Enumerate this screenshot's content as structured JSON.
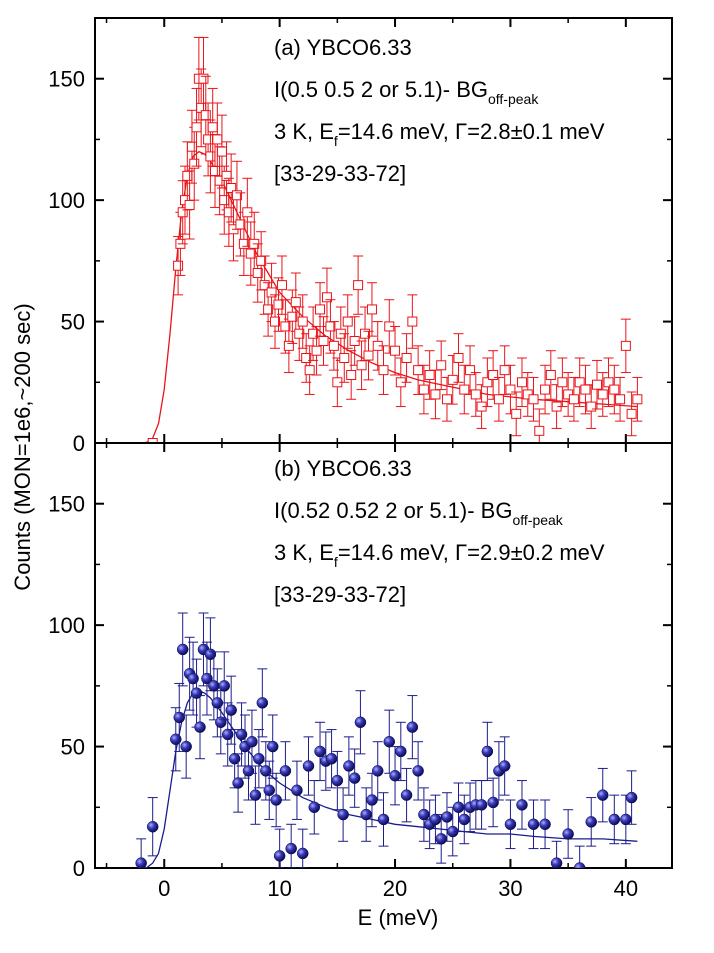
{
  "chart_data": [
    {
      "type": "scatter",
      "panel": "a",
      "annotations": {
        "line1": "(a) YBCO6.33",
        "line2_main": "I(0.5 0.5 2 or 5.1)- BG",
        "line2_sub": "off-peak",
        "line3_pre": "3 K, E",
        "line3_sub": "f",
        "line3_post": "=14.6 meV, Γ=2.8±0.1 meV",
        "line4": "[33-29-33-72]"
      },
      "xlim": [
        -6,
        44
      ],
      "ylim": [
        0,
        175
      ],
      "yticks": [
        0,
        50,
        100,
        150
      ],
      "marker": "open-square",
      "color": "#e8141a",
      "points": [
        [
          -1.0,
          0,
          0
        ],
        [
          1.2,
          73,
          12
        ],
        [
          1.4,
          82,
          13
        ],
        [
          1.6,
          95,
          13
        ],
        [
          1.8,
          100,
          14
        ],
        [
          2.0,
          110,
          14
        ],
        [
          2.2,
          98,
          14
        ],
        [
          2.4,
          122,
          15
        ],
        [
          2.6,
          115,
          15
        ],
        [
          2.8,
          130,
          16
        ],
        [
          3.0,
          150,
          17
        ],
        [
          3.2,
          138,
          16
        ],
        [
          3.4,
          150,
          17
        ],
        [
          3.6,
          135,
          16
        ],
        [
          3.8,
          125,
          15
        ],
        [
          4.0,
          118,
          15
        ],
        [
          4.2,
          130,
          16
        ],
        [
          4.4,
          112,
          15
        ],
        [
          4.6,
          125,
          15
        ],
        [
          4.8,
          108,
          14
        ],
        [
          5.0,
          120,
          15
        ],
        [
          5.2,
          100,
          14
        ],
        [
          5.4,
          110,
          14
        ],
        [
          5.6,
          95,
          14
        ],
        [
          5.8,
          105,
          14
        ],
        [
          6.0,
          88,
          13
        ],
        [
          6.3,
          102,
          14
        ],
        [
          6.6,
          90,
          13
        ],
        [
          6.9,
          82,
          13
        ],
        [
          7.2,
          95,
          14
        ],
        [
          7.5,
          78,
          13
        ],
        [
          7.8,
          82,
          13
        ],
        [
          8.1,
          70,
          12
        ],
        [
          8.4,
          75,
          12
        ],
        [
          8.7,
          65,
          12
        ],
        [
          9.0,
          55,
          11
        ],
        [
          9.3,
          62,
          12
        ],
        [
          9.6,
          50,
          11
        ],
        [
          9.9,
          57,
          11
        ],
        [
          10.2,
          65,
          12
        ],
        [
          10.5,
          48,
          11
        ],
        [
          10.8,
          40,
          11
        ],
        [
          11.1,
          52,
          11
        ],
        [
          11.4,
          58,
          12
        ],
        [
          11.7,
          45,
          11
        ],
        [
          12.0,
          50,
          11
        ],
        [
          12.3,
          35,
          10
        ],
        [
          12.6,
          30,
          10
        ],
        [
          12.9,
          45,
          11
        ],
        [
          13.2,
          38,
          10
        ],
        [
          13.5,
          55,
          11
        ],
        [
          13.8,
          42,
          10
        ],
        [
          14.1,
          60,
          12
        ],
        [
          14.4,
          48,
          11
        ],
        [
          14.7,
          40,
          10
        ],
        [
          15.0,
          25,
          10
        ],
        [
          15.3,
          45,
          11
        ],
        [
          15.6,
          35,
          10
        ],
        [
          15.9,
          50,
          11
        ],
        [
          16.2,
          28,
          10
        ],
        [
          16.5,
          42,
          10
        ],
        [
          16.8,
          65,
          12
        ],
        [
          17.1,
          32,
          10
        ],
        [
          17.4,
          45,
          11
        ],
        [
          17.7,
          36,
          10
        ],
        [
          18.0,
          55,
          11
        ],
        [
          18.5,
          40,
          10
        ],
        [
          19.0,
          30,
          10
        ],
        [
          19.5,
          48,
          11
        ],
        [
          20.0,
          38,
          10
        ],
        [
          20.5,
          25,
          10
        ],
        [
          21.0,
          35,
          10
        ],
        [
          21.5,
          50,
          11
        ],
        [
          22.0,
          30,
          10
        ],
        [
          22.5,
          22,
          10
        ],
        [
          23.0,
          28,
          10
        ],
        [
          23.5,
          20,
          10
        ],
        [
          24.0,
          32,
          10
        ],
        [
          24.5,
          18,
          9
        ],
        [
          25.0,
          26,
          10
        ],
        [
          25.5,
          35,
          10
        ],
        [
          26.0,
          22,
          10
        ],
        [
          26.5,
          30,
          10
        ],
        [
          27.0,
          20,
          9
        ],
        [
          27.5,
          15,
          9
        ],
        [
          28.0,
          25,
          10
        ],
        [
          28.5,
          28,
          10
        ],
        [
          29.0,
          18,
          9
        ],
        [
          29.5,
          30,
          10
        ],
        [
          30.0,
          22,
          10
        ],
        [
          30.5,
          12,
          9
        ],
        [
          31.0,
          25,
          10
        ],
        [
          31.5,
          20,
          9
        ],
        [
          32.0,
          18,
          9
        ],
        [
          32.5,
          5,
          9
        ],
        [
          33.0,
          22,
          10
        ],
        [
          33.5,
          28,
          10
        ],
        [
          34.0,
          15,
          9
        ],
        [
          34.5,
          25,
          10
        ],
        [
          35.0,
          20,
          9
        ],
        [
          35.5,
          18,
          9
        ],
        [
          36.0,
          25,
          10
        ],
        [
          36.5,
          22,
          10
        ],
        [
          37.0,
          15,
          9
        ],
        [
          37.5,
          24,
          10
        ],
        [
          38.0,
          20,
          9
        ],
        [
          38.5,
          25,
          10
        ],
        [
          39.0,
          22,
          10
        ],
        [
          39.5,
          18,
          9
        ],
        [
          40.0,
          40,
          11
        ],
        [
          40.5,
          12,
          9
        ],
        [
          41.0,
          18,
          9
        ]
      ],
      "fit": [
        [
          -2.0,
          0
        ],
        [
          -1.5,
          0.3
        ],
        [
          -1.0,
          2
        ],
        [
          -0.5,
          8
        ],
        [
          0.0,
          22
        ],
        [
          0.5,
          45
        ],
        [
          1.0,
          72
        ],
        [
          1.5,
          95
        ],
        [
          2.0,
          110
        ],
        [
          2.5,
          118
        ],
        [
          3.0,
          120
        ],
        [
          3.5,
          119
        ],
        [
          4.0,
          116
        ],
        [
          5.0,
          108
        ],
        [
          6.0,
          98
        ],
        [
          7.0,
          88
        ],
        [
          8.0,
          78
        ],
        [
          9.0,
          70
        ],
        [
          10.0,
          62
        ],
        [
          12.0,
          52
        ],
        [
          14.0,
          44
        ],
        [
          16.0,
          38
        ],
        [
          18.0,
          33
        ],
        [
          20.0,
          29
        ],
        [
          22.0,
          26
        ],
        [
          24.0,
          24
        ],
        [
          26.0,
          22
        ],
        [
          28.0,
          20
        ],
        [
          30.0,
          19
        ],
        [
          32.0,
          18
        ],
        [
          35.0,
          17
        ],
        [
          38.0,
          16
        ],
        [
          41.0,
          15
        ]
      ]
    },
    {
      "type": "scatter",
      "panel": "b",
      "annotations": {
        "line1": "(b) YBCO6.33",
        "line2_main": "I(0.52 0.52 2 or 5.1)- BG",
        "line2_sub": "off-peak",
        "line3_pre": "3 K, E",
        "line3_sub": "f",
        "line3_post": "=14.6 meV, Γ=2.9±0.2 meV",
        "line4": "[33-29-33-72]"
      },
      "xlim": [
        -6,
        44
      ],
      "ylim": [
        0,
        175
      ],
      "yticks": [
        0,
        50,
        100,
        150
      ],
      "xticks": [
        0,
        10,
        20,
        30,
        40
      ],
      "xlabel": "E (meV)",
      "marker": "filled-sphere",
      "color": "#1c1c8c",
      "points": [
        [
          -2.0,
          2,
          10
        ],
        [
          -1.0,
          17,
          12
        ],
        [
          1.0,
          53,
          13
        ],
        [
          1.3,
          62,
          14
        ],
        [
          1.6,
          90,
          15
        ],
        [
          1.9,
          50,
          13
        ],
        [
          2.2,
          80,
          15
        ],
        [
          2.5,
          78,
          15
        ],
        [
          2.8,
          72,
          14
        ],
        [
          3.1,
          58,
          13
        ],
        [
          3.4,
          90,
          15
        ],
        [
          3.7,
          78,
          15
        ],
        [
          4.0,
          88,
          15
        ],
        [
          4.3,
          75,
          14
        ],
        [
          4.6,
          68,
          14
        ],
        [
          4.9,
          60,
          13
        ],
        [
          5.2,
          75,
          14
        ],
        [
          5.5,
          55,
          13
        ],
        [
          5.8,
          65,
          14
        ],
        [
          6.1,
          45,
          12
        ],
        [
          6.4,
          35,
          12
        ],
        [
          6.7,
          55,
          13
        ],
        [
          7.0,
          50,
          13
        ],
        [
          7.3,
          40,
          12
        ],
        [
          7.6,
          52,
          13
        ],
        [
          7.9,
          30,
          12
        ],
        [
          8.2,
          45,
          12
        ],
        [
          8.5,
          68,
          14
        ],
        [
          8.8,
          40,
          12
        ],
        [
          9.1,
          32,
          12
        ],
        [
          9.4,
          50,
          13
        ],
        [
          9.7,
          28,
          11
        ],
        [
          10.0,
          5,
          11
        ],
        [
          10.5,
          40,
          12
        ],
        [
          11.0,
          8,
          10
        ],
        [
          11.5,
          32,
          12
        ],
        [
          12.0,
          6,
          10
        ],
        [
          12.5,
          42,
          12
        ],
        [
          13.0,
          25,
          11
        ],
        [
          13.5,
          48,
          12
        ],
        [
          14.0,
          44,
          12
        ],
        [
          14.5,
          45,
          12
        ],
        [
          15.0,
          36,
          12
        ],
        [
          15.5,
          22,
          11
        ],
        [
          16.0,
          42,
          12
        ],
        [
          16.5,
          37,
          12
        ],
        [
          17.0,
          60,
          13
        ],
        [
          17.5,
          22,
          11
        ],
        [
          18.0,
          28,
          11
        ],
        [
          18.5,
          40,
          12
        ],
        [
          19.0,
          20,
          11
        ],
        [
          19.5,
          52,
          13
        ],
        [
          20.0,
          38,
          12
        ],
        [
          20.5,
          48,
          12
        ],
        [
          21.0,
          30,
          11
        ],
        [
          21.5,
          58,
          13
        ],
        [
          22.0,
          40,
          12
        ],
        [
          22.5,
          22,
          11
        ],
        [
          23.0,
          18,
          10
        ],
        [
          23.5,
          20,
          10
        ],
        [
          24.0,
          12,
          10
        ],
        [
          24.5,
          21,
          10
        ],
        [
          25.0,
          15,
          10
        ],
        [
          25.5,
          25,
          10
        ],
        [
          26.0,
          20,
          10
        ],
        [
          26.5,
          25,
          10
        ],
        [
          27.0,
          26,
          10
        ],
        [
          27.5,
          26,
          10
        ],
        [
          28.0,
          48,
          12
        ],
        [
          28.5,
          27,
          10
        ],
        [
          29.0,
          40,
          12
        ],
        [
          29.5,
          42,
          12
        ],
        [
          30.0,
          18,
          10
        ],
        [
          31.0,
          26,
          10
        ],
        [
          32.0,
          18,
          10
        ],
        [
          33.0,
          18,
          10
        ],
        [
          34.0,
          2,
          9
        ],
        [
          35.0,
          14,
          10
        ],
        [
          36.0,
          0,
          9
        ],
        [
          37.0,
          19,
          10
        ],
        [
          38.0,
          30,
          11
        ],
        [
          39.0,
          20,
          10
        ],
        [
          40.0,
          20,
          10
        ],
        [
          40.5,
          29,
          11
        ]
      ],
      "fit": [
        [
          -2.0,
          0
        ],
        [
          -1.5,
          0.2
        ],
        [
          -1.0,
          2
        ],
        [
          -0.5,
          6
        ],
        [
          0.0,
          16
        ],
        [
          0.5,
          32
        ],
        [
          1.0,
          48
        ],
        [
          1.5,
          60
        ],
        [
          2.0,
          68
        ],
        [
          2.5,
          72
        ],
        [
          3.0,
          73
        ],
        [
          3.5,
          72
        ],
        [
          4.0,
          70
        ],
        [
          5.0,
          64
        ],
        [
          6.0,
          57
        ],
        [
          7.0,
          50
        ],
        [
          8.0,
          44
        ],
        [
          9.0,
          39
        ],
        [
          10.0,
          35
        ],
        [
          12.0,
          29
        ],
        [
          14.0,
          25
        ],
        [
          16.0,
          22
        ],
        [
          18.0,
          20
        ],
        [
          20.0,
          18
        ],
        [
          22.0,
          17
        ],
        [
          24.0,
          16
        ],
        [
          26.0,
          15
        ],
        [
          28.0,
          14
        ],
        [
          30.0,
          14
        ],
        [
          32.0,
          13
        ],
        [
          35.0,
          12
        ],
        [
          38.0,
          12
        ],
        [
          41.0,
          11
        ]
      ]
    }
  ],
  "shared": {
    "ylabel": "Counts (MON=1e6,~200 sec)",
    "xticks": [
      0,
      10,
      20,
      30,
      40
    ],
    "xlabel": "E (meV)"
  }
}
